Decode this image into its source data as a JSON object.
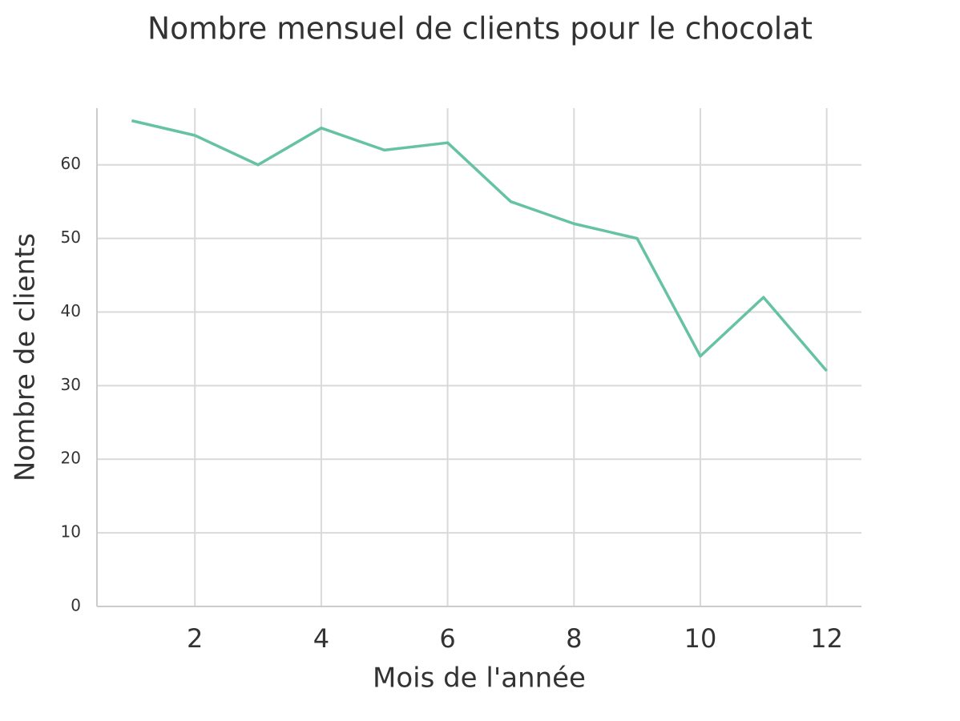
{
  "chart_data": {
    "type": "line",
    "title": "Nombre mensuel de clients pour le chocolat",
    "xlabel": "Mois de l'année",
    "ylabel": "Nombre de clients",
    "x": [
      1,
      2,
      3,
      4,
      5,
      6,
      7,
      8,
      9,
      10,
      11,
      12
    ],
    "series": [
      {
        "color": "#66c2a5",
        "values": [
          66,
          64,
          60,
          65,
          62,
          63,
          55,
          52,
          50,
          34,
          42,
          32
        ]
      }
    ],
    "xlim": [
      0.45,
      12.55
    ],
    "ylim": [
      0,
      67.7
    ],
    "xticks": [
      2,
      4,
      6,
      8,
      10,
      12
    ],
    "yticks": [
      0,
      10,
      20,
      30,
      40,
      50,
      60
    ],
    "grid": true
  }
}
